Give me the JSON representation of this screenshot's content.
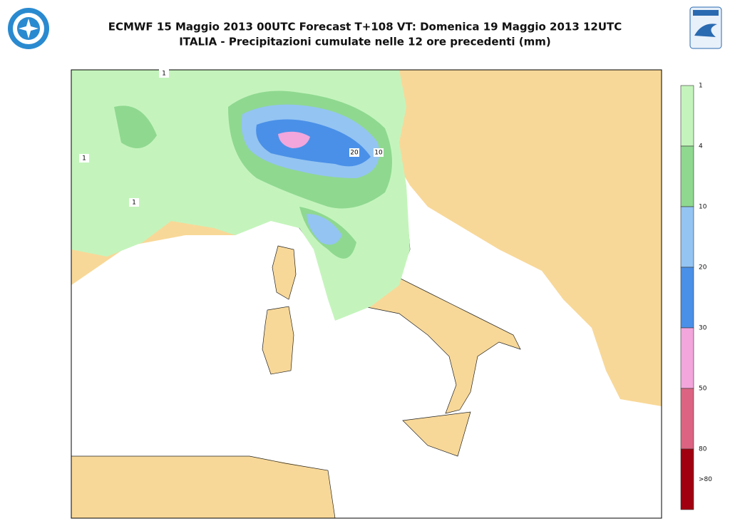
{
  "header": {
    "title": "ECMWF 15 Maggio 2013 00UTC Forecast T+108 VT: Domenica 19 Maggio 2013 12UTC",
    "subtitle": "ITALIA - Precipitazioni cumulate nelle 12 ore precedenti (mm)"
  },
  "legend": {
    "levels": [
      "1",
      "4",
      "10",
      "20",
      "30",
      "50",
      "80",
      ">80"
    ],
    "colors": [
      "#c4f4bc",
      "#8fd890",
      "#94c4f2",
      "#4a90e8",
      "#f2a6dc",
      "#dc6482",
      "#a00010"
    ]
  },
  "map_labels": [
    "1",
    "1",
    "1",
    "20",
    "10"
  ]
}
